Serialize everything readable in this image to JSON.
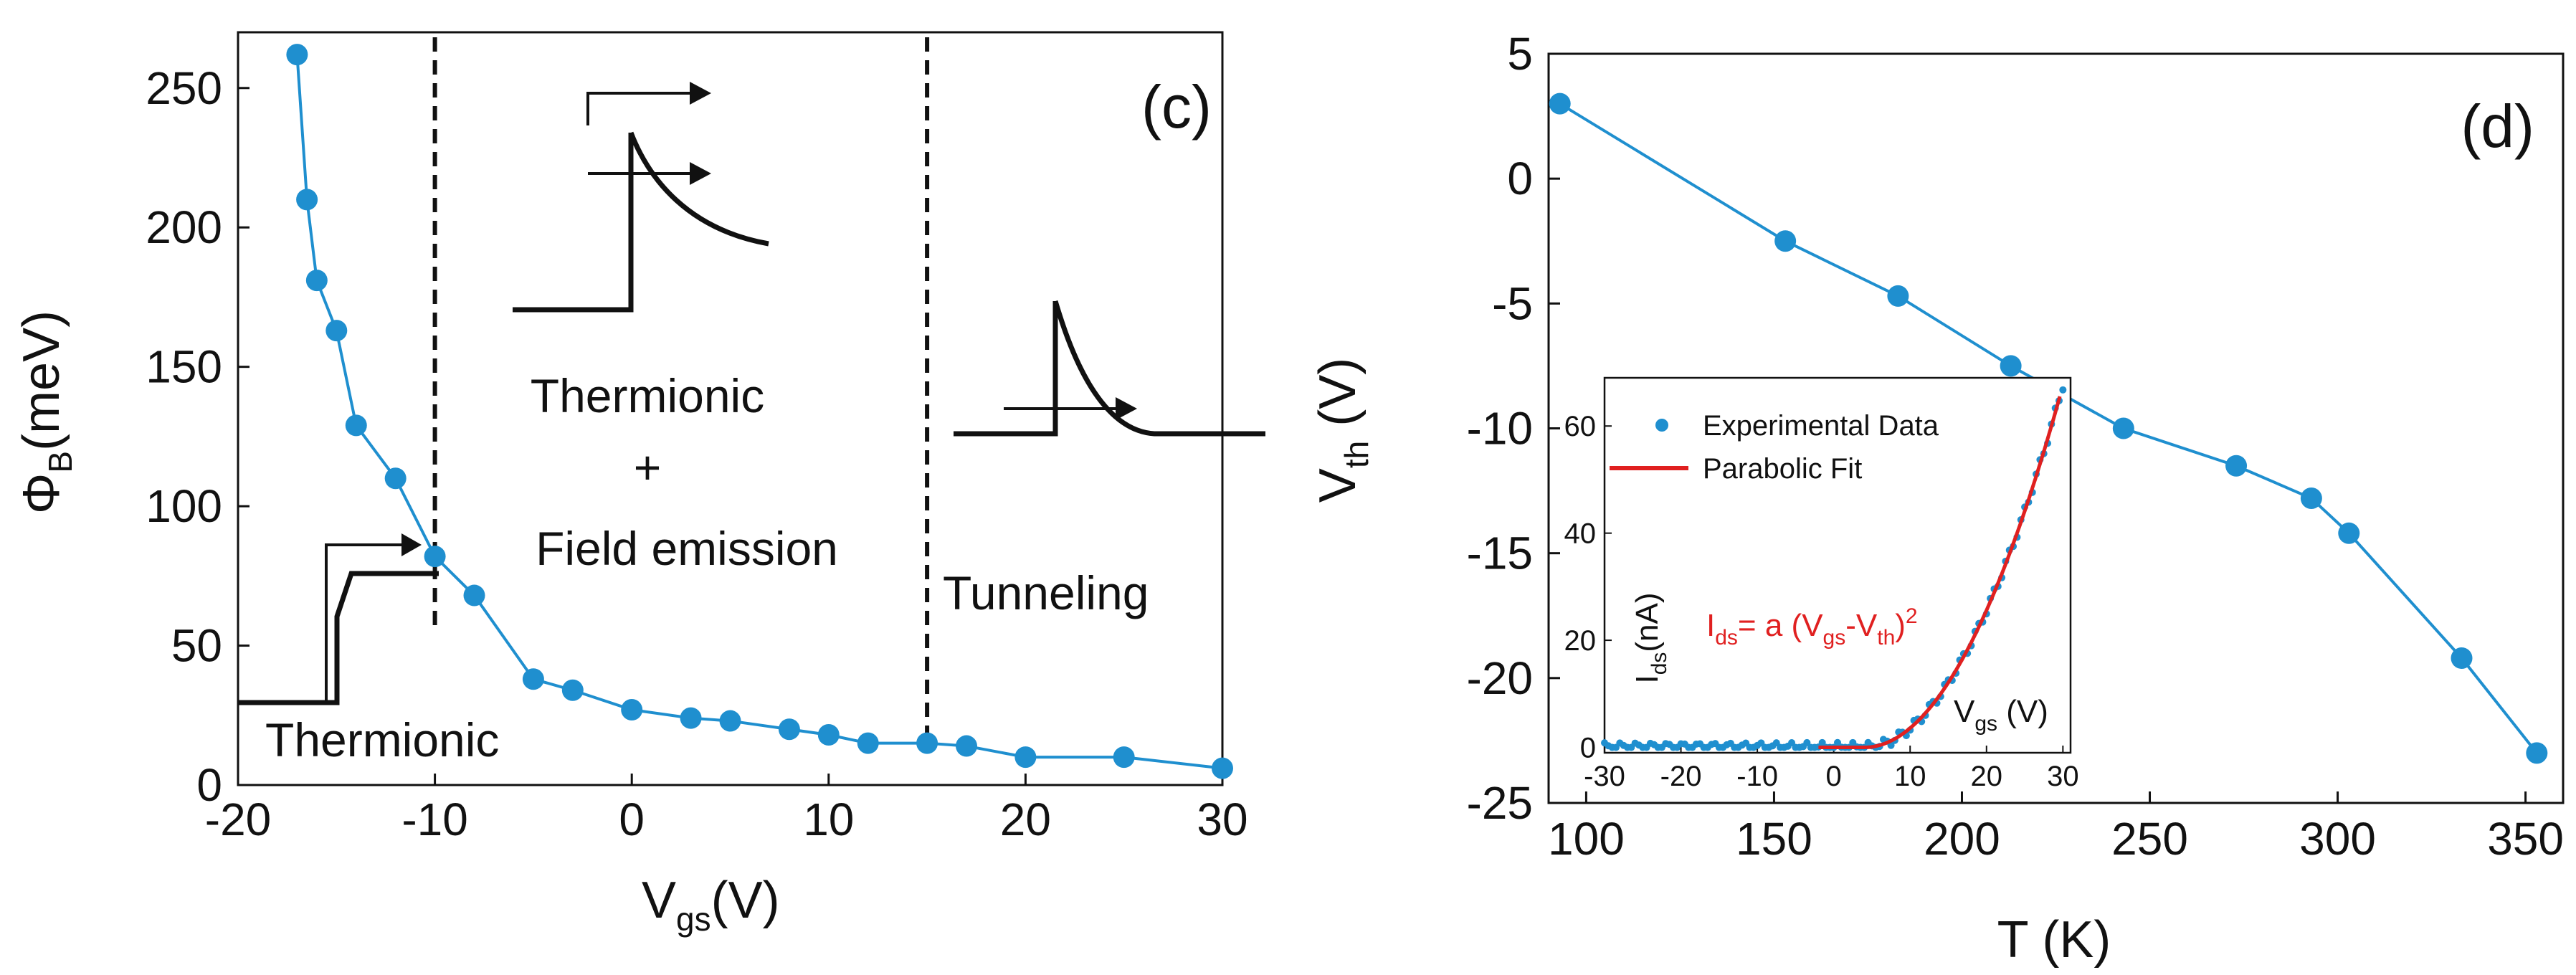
{
  "chart_data": [
    {
      "type": "line",
      "panel": "(c)",
      "xlabel": "V",
      "xlabel_sub": "gs",
      "xlabel_unit": "(V)",
      "ylabel": "Φ",
      "ylabel_sub": "B",
      "ylabel_unit": "(meV)",
      "xlim": [
        -20,
        30
      ],
      "ylim": [
        0,
        270
      ],
      "xticks": [
        -20,
        -10,
        0,
        10,
        20,
        30
      ],
      "yticks": [
        0,
        50,
        100,
        150,
        200,
        250
      ],
      "vlines": [
        -10,
        15
      ],
      "color": "#1f8fcf",
      "series": [
        {
          "name": "Φ_B",
          "x": [
            -17,
            -16.5,
            -16,
            -15,
            -14,
            -12,
            -10,
            -8,
            -5,
            -3,
            0,
            3,
            5,
            8,
            10,
            12,
            15,
            17,
            20,
            25,
            30
          ],
          "y": [
            262,
            210,
            181,
            163,
            129,
            110,
            82,
            68,
            38,
            34,
            27,
            24,
            23,
            20,
            18,
            15,
            15,
            14,
            10,
            10,
            6
          ]
        }
      ],
      "annotations": {
        "region_thermionic": "Thermionic",
        "region_mixed_1": "Thermionic",
        "region_mixed_2": "+",
        "region_mixed_3": "Field emission",
        "region_tunneling": "Tunneling"
      }
    },
    {
      "type": "line",
      "panel": "(d)",
      "xlabel": "T (K)",
      "ylabel": "V",
      "ylabel_sub": "th",
      "ylabel_unit": " (V)",
      "xlim": [
        90,
        360
      ],
      "ylim": [
        -25,
        5
      ],
      "xticks": [
        100,
        150,
        200,
        250,
        300,
        350
      ],
      "yticks": [
        -25,
        -20,
        -15,
        -10,
        -5,
        0,
        5
      ],
      "color": "#1f8fcf",
      "series": [
        {
          "name": "V_th",
          "x": [
            93,
            153,
            183,
            213,
            243,
            273,
            293,
            303,
            333,
            353
          ],
          "y": [
            3,
            -2.5,
            -4.7,
            -7.5,
            -10,
            -11.5,
            -12.8,
            -14.2,
            -19.2,
            -23
          ]
        }
      ],
      "inset": {
        "type": "scatter",
        "xlabel": "V",
        "xlabel_sub": "gs",
        "xlabel_unit": " (V)",
        "ylabel": "I",
        "ylabel_sub": "ds",
        "ylabel_unit": "(nA)",
        "xlim": [
          -30,
          31
        ],
        "ylim": [
          -1,
          69
        ],
        "xticks": [
          -30,
          -20,
          -10,
          0,
          10,
          20,
          30
        ],
        "yticks": [
          0,
          20,
          40,
          60
        ],
        "legend": [
          "Experimental Data",
          "Parabolic Fit"
        ],
        "data_color": "#1f8fcf",
        "fit_color": "#e02020",
        "formula_parts": [
          "I",
          "ds",
          "= a (V",
          "gs",
          "-V",
          "th",
          ")",
          "2"
        ],
        "fit": {
          "a": 0.1,
          "vth": 4
        }
      }
    }
  ]
}
